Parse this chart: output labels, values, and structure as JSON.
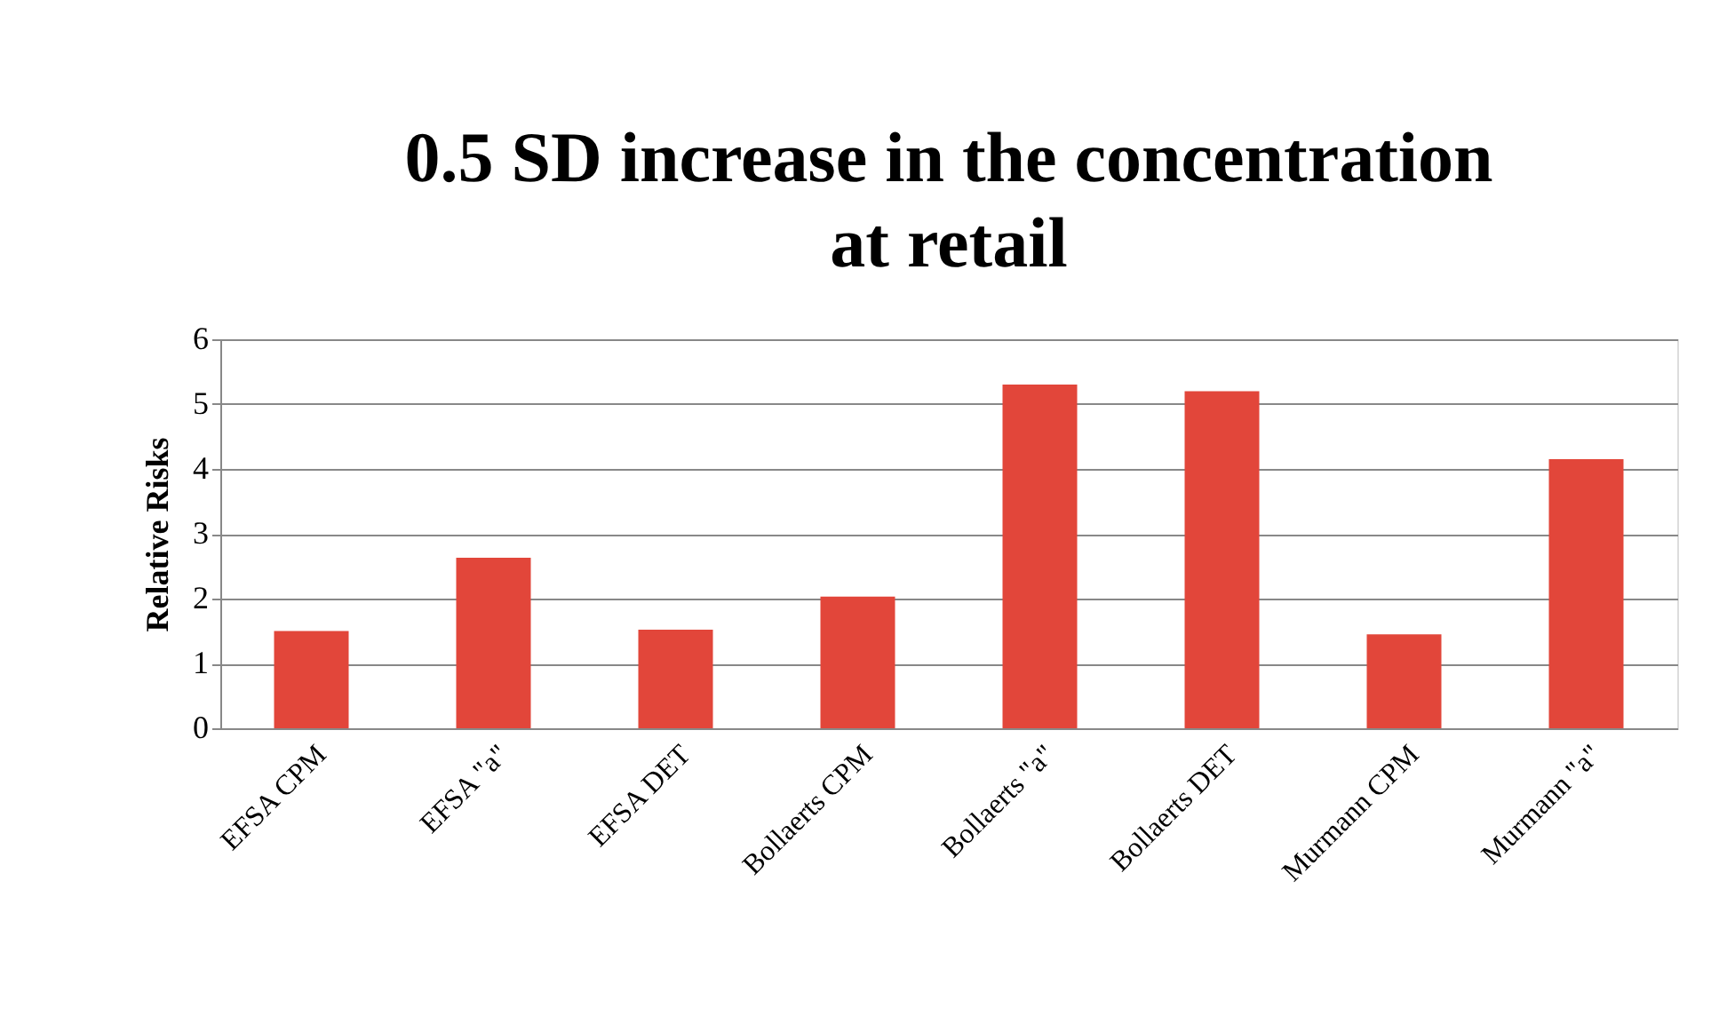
{
  "chart_data": {
    "type": "bar",
    "title": "0.5 SD increase in the concentration at retail",
    "ylabel": "Relative Risks",
    "categories": [
      "EFSA CPM",
      "EFSA \"a\"",
      "EFSA DET",
      "Bollaerts CPM",
      "Bollaerts \"a\"",
      "Bollaerts DET",
      "Murmann CPM",
      "Murmann \"a\""
    ],
    "values": [
      1.5,
      2.63,
      1.52,
      2.03,
      5.3,
      5.2,
      1.45,
      4.15
    ],
    "color": "#e2463a",
    "ylim": [
      0,
      6
    ],
    "yticks": [
      0,
      1,
      2,
      3,
      4,
      5,
      6
    ],
    "grid": "y"
  }
}
